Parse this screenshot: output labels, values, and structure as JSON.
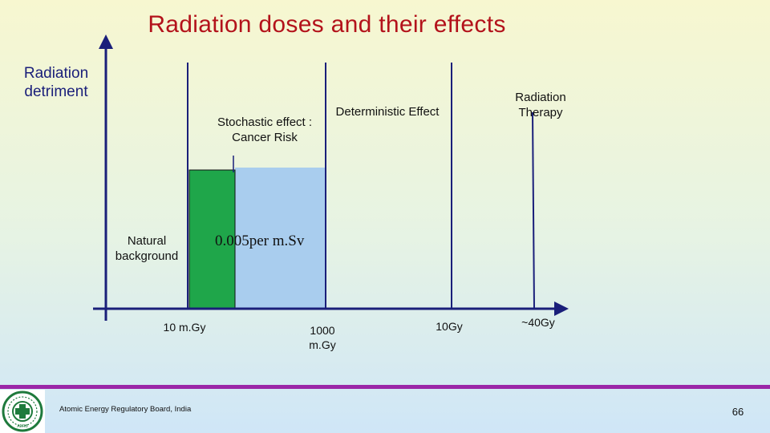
{
  "title": "Radiation doses and their effects",
  "y_axis_label": "Radiation detriment",
  "regions": {
    "stochastic": "Stochastic effect : Cancer Risk",
    "deterministic": "Deterministic Effect",
    "therapy": "Radiation Therapy",
    "natural": "Natural background"
  },
  "risk_rate": "0.005per m.Sv",
  "ticks": {
    "t1": "10 m.Gy",
    "t2": "1000 m.Gy",
    "t3": "10Gy",
    "t4": "~40Gy"
  },
  "colors": {
    "title": "#b3121b",
    "natural_bar": "#1fa64a",
    "stochastic_bar": "#a9cdee",
    "footer_bar": "#9b27a8",
    "axis": "#1a1f7a"
  },
  "footer": {
    "organization": "Atomic Energy Regulatory Board, India",
    "page_number": "66"
  },
  "logo": {
    "icon": "aerb-emblem-icon",
    "text": "AERB"
  }
}
